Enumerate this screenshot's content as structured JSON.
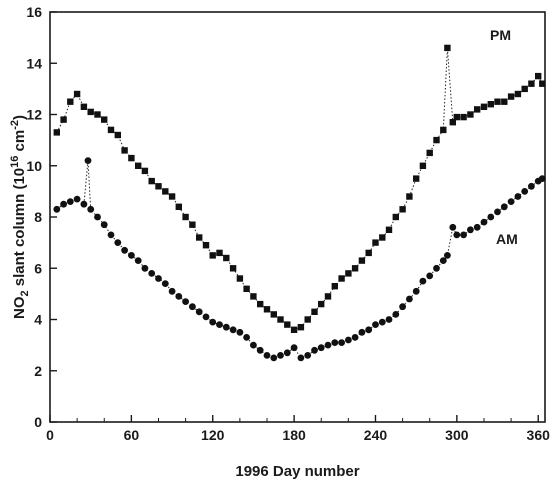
{
  "chart_data": {
    "type": "scatter",
    "title": "",
    "xlabel": "1996 Day number",
    "ylabel_parts": {
      "pre": "NO",
      "sub": "2",
      "mid": " slant column (10",
      "sup1": "16",
      "mid2": " cm",
      "sup2": "-2",
      "post": ")"
    },
    "xlim": [
      0,
      365
    ],
    "ylim": [
      0,
      16
    ],
    "xticks": [
      0,
      60,
      120,
      180,
      240,
      300,
      360
    ],
    "yticks": [
      0,
      2,
      4,
      6,
      8,
      10,
      12,
      14,
      16
    ],
    "grid": false,
    "legend": "none",
    "series": [
      {
        "name": "PM",
        "marker": "square",
        "connect": "dotted",
        "x": [
          5,
          10,
          15,
          20,
          25,
          30,
          35,
          40,
          45,
          50,
          55,
          60,
          65,
          70,
          75,
          80,
          85,
          90,
          95,
          100,
          105,
          110,
          115,
          120,
          125,
          130,
          135,
          140,
          145,
          150,
          155,
          160,
          165,
          170,
          175,
          180,
          185,
          190,
          195,
          200,
          205,
          210,
          215,
          220,
          225,
          230,
          235,
          240,
          245,
          250,
          255,
          260,
          265,
          270,
          275,
          280,
          285,
          290,
          293,
          297,
          300,
          305,
          310,
          315,
          320,
          325,
          330,
          335,
          340,
          345,
          350,
          355,
          360,
          363
        ],
        "y": [
          11.3,
          11.8,
          12.5,
          12.8,
          12.3,
          12.1,
          12.0,
          11.8,
          11.4,
          11.2,
          10.6,
          10.3,
          10.0,
          9.8,
          9.4,
          9.2,
          9.0,
          8.8,
          8.4,
          8.0,
          7.7,
          7.2,
          6.9,
          6.5,
          6.6,
          6.4,
          6.0,
          5.6,
          5.2,
          4.9,
          4.6,
          4.4,
          4.2,
          4.0,
          3.8,
          3.6,
          3.7,
          4.0,
          4.3,
          4.6,
          4.9,
          5.3,
          5.6,
          5.8,
          6.0,
          6.3,
          6.6,
          7.0,
          7.2,
          7.5,
          8.0,
          8.3,
          8.8,
          9.5,
          10.0,
          10.5,
          11.0,
          11.4,
          14.6,
          11.7,
          11.9,
          11.9,
          12.0,
          12.2,
          12.3,
          12.4,
          12.5,
          12.5,
          12.7,
          12.8,
          13.0,
          13.2,
          13.5,
          13.2
        ]
      },
      {
        "name": "AM",
        "marker": "circle",
        "connect": "dotted",
        "x": [
          5,
          10,
          15,
          20,
          25,
          28,
          30,
          35,
          40,
          45,
          50,
          55,
          60,
          65,
          70,
          75,
          80,
          85,
          90,
          95,
          100,
          105,
          110,
          115,
          120,
          125,
          130,
          135,
          140,
          145,
          150,
          155,
          160,
          165,
          170,
          175,
          180,
          185,
          190,
          195,
          200,
          205,
          210,
          215,
          220,
          225,
          230,
          235,
          240,
          245,
          250,
          255,
          260,
          265,
          270,
          275,
          280,
          285,
          290,
          293,
          297,
          300,
          305,
          310,
          315,
          320,
          325,
          330,
          335,
          340,
          345,
          350,
          355,
          360,
          363
        ],
        "y": [
          8.3,
          8.5,
          8.6,
          8.7,
          8.5,
          10.2,
          8.3,
          8.0,
          7.7,
          7.3,
          7.0,
          6.7,
          6.5,
          6.3,
          6.0,
          5.8,
          5.6,
          5.4,
          5.1,
          4.9,
          4.7,
          4.5,
          4.3,
          4.1,
          3.9,
          3.8,
          3.7,
          3.6,
          3.5,
          3.3,
          3.0,
          2.8,
          2.6,
          2.5,
          2.6,
          2.7,
          2.9,
          2.5,
          2.6,
          2.8,
          2.9,
          3.0,
          3.1,
          3.1,
          3.2,
          3.3,
          3.5,
          3.6,
          3.8,
          3.9,
          4.0,
          4.2,
          4.5,
          4.8,
          5.1,
          5.5,
          5.7,
          6.0,
          6.3,
          6.5,
          7.6,
          7.3,
          7.3,
          7.5,
          7.6,
          7.8,
          8.0,
          8.2,
          8.4,
          8.6,
          8.8,
          9.0,
          9.2,
          9.4,
          9.5
        ]
      }
    ]
  }
}
